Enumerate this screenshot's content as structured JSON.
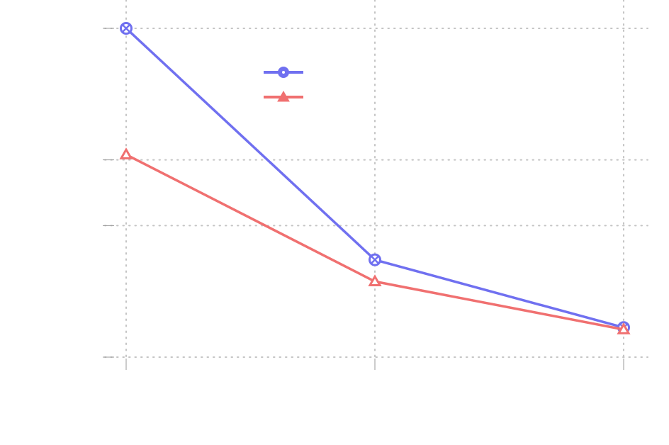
{
  "chart_data": {
    "type": "line",
    "title": "",
    "xlabel": "",
    "ylabel": "",
    "x": [
      0,
      1,
      2
    ],
    "xlim": [
      0,
      2
    ],
    "ylim": [
      0,
      5
    ],
    "x_grid_values": [
      0,
      1,
      2
    ],
    "y_grid_values": [
      0,
      2,
      3,
      5
    ],
    "grid": true,
    "grid_style": "dotted",
    "legend_position": "top-center",
    "series": [
      {
        "values": [
          5.0,
          1.48,
          0.45
        ],
        "color": "#7070f0",
        "marker": "circle-x"
      },
      {
        "values": [
          3.08,
          1.15,
          0.42
        ],
        "color": "#f07070",
        "marker": "triangle"
      }
    ]
  }
}
